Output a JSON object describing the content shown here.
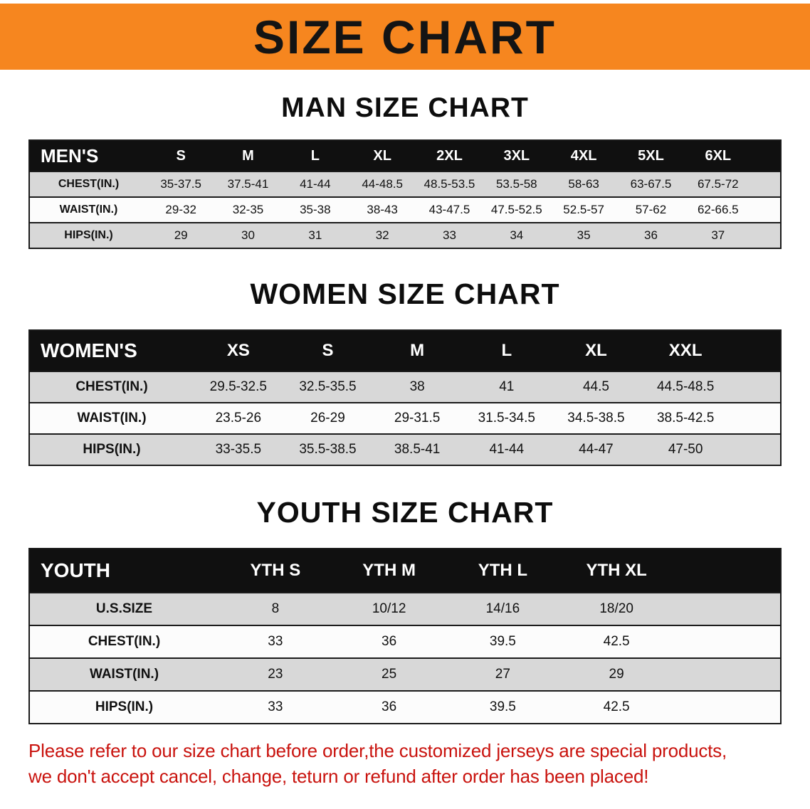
{
  "banner": {
    "title": "SIZE CHART"
  },
  "colors": {
    "banner_bg": "#f6861f",
    "header_bg": "#101010",
    "row_shaded": "#d8d8d8",
    "disclaimer_red": "#c9130e"
  },
  "tables": [
    {
      "heading": "MAN SIZE CHART",
      "header": [
        "MEN'S",
        "S",
        "M",
        "L",
        "XL",
        "2XL",
        "3XL",
        "4XL",
        "5XL",
        "6XL"
      ],
      "rows": [
        [
          "CHEST(IN.)",
          "35-37.5",
          "37.5-41",
          "41-44",
          "44-48.5",
          "48.5-53.5",
          "53.5-58",
          "58-63",
          "63-67.5",
          "67.5-72"
        ],
        [
          "WAIST(IN.)",
          "29-32",
          "32-35",
          "35-38",
          "38-43",
          "43-47.5",
          "47.5-52.5",
          "52.5-57",
          "57-62",
          "62-66.5"
        ],
        [
          "HIPS(IN.)",
          "29",
          "30",
          "31",
          "32",
          "33",
          "34",
          "35",
          "36",
          "37"
        ]
      ]
    },
    {
      "heading": "WOMEN SIZE CHART",
      "header": [
        "WOMEN'S",
        "XS",
        "S",
        "M",
        "L",
        "XL",
        "XXL"
      ],
      "rows": [
        [
          "CHEST(IN.)",
          "29.5-32.5",
          "32.5-35.5",
          "38",
          "41",
          "44.5",
          "44.5-48.5"
        ],
        [
          "WAIST(IN.)",
          "23.5-26",
          "26-29",
          "29-31.5",
          "31.5-34.5",
          "34.5-38.5",
          "38.5-42.5"
        ],
        [
          "HIPS(IN.)",
          "33-35.5",
          "35.5-38.5",
          "38.5-41",
          "41-44",
          "44-47",
          "47-50"
        ]
      ]
    },
    {
      "heading": "YOUTH SIZE CHART",
      "header": [
        "YOUTH",
        "YTH S",
        "YTH M",
        "YTH L",
        "YTH XL"
      ],
      "rows": [
        [
          "U.S.SIZE",
          "8",
          "10/12",
          "14/16",
          "18/20"
        ],
        [
          "CHEST(IN.)",
          "33",
          "36",
          "39.5",
          "42.5"
        ],
        [
          "WAIST(IN.)",
          "23",
          "25",
          "27",
          "29"
        ],
        [
          "HIPS(IN.)",
          "33",
          "36",
          "39.5",
          "42.5"
        ]
      ]
    }
  ],
  "disclaimer": {
    "line1": "Please refer to our size chart before order,the customized jerseys are special products,",
    "line2": "we don't accept cancel, change, teturn or refund after order has been placed!"
  }
}
